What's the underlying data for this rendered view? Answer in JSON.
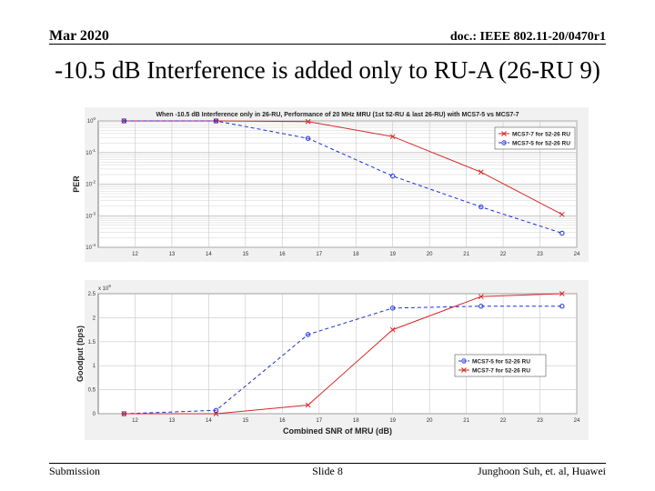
{
  "header": {
    "date": "Mar 2020",
    "doc": "doc.: IEEE 802.11-20/0470r1"
  },
  "title": "-10.5 dB Interference is added only to RU-A (26-RU 9)",
  "footer": {
    "left": "Submission",
    "center": "Slide 8",
    "right": "Junghoon Suh, et. al, Huawei"
  },
  "colors": {
    "red_series": "#d62728",
    "blue_series": "#1f2fd6"
  },
  "chart_data": [
    {
      "type": "line",
      "title": "When -10.5 dB Interference only in 26-RU, Performance of 20 MHz MRU (1st 52-RU & last 26-RU) with MCS7-5 vs MCS7-7",
      "xlabel": "",
      "ylabel": "PER",
      "yscale": "log",
      "xlim": [
        11,
        24
      ],
      "ylim_exp": [
        -4,
        0
      ],
      "x_ticks": [
        12,
        13,
        14,
        15,
        16,
        17,
        18,
        19,
        20,
        21,
        22,
        23,
        24
      ],
      "y_ticks": [
        "10^0",
        "10^-1",
        "10^-2",
        "10^-3",
        "10^-4"
      ],
      "legend": [
        "MCS7-7 for 52-26 RU",
        "MCS7-5 for 52-26 RU"
      ],
      "legend_position": "top-right",
      "series": [
        {
          "name": "MCS7-7 for 52-26 RU",
          "color": "red",
          "style": "solid",
          "marker": "x",
          "x": [
            11.7,
            14.2,
            16.7,
            19.0,
            21.4,
            23.6
          ],
          "y": [
            1.0,
            1.0,
            0.95,
            0.32,
            0.024,
            0.0011
          ]
        },
        {
          "name": "MCS7-5 for 52-26 RU",
          "color": "blue",
          "style": "dashed",
          "marker": "o",
          "x": [
            11.7,
            14.2,
            16.7,
            19.0,
            21.4,
            23.6
          ],
          "y": [
            1.0,
            1.0,
            0.28,
            0.018,
            0.0019,
            0.00028
          ]
        }
      ]
    },
    {
      "type": "line",
      "title": "",
      "xlabel": "Combined SNR of MRU (dB)",
      "ylabel": "Goodput (bps)",
      "y_multiplier": "x 10^8",
      "xlim": [
        11,
        24
      ],
      "ylim": [
        0,
        2.5
      ],
      "x_ticks": [
        12,
        13,
        14,
        15,
        16,
        17,
        18,
        19,
        20,
        21,
        22,
        23,
        24
      ],
      "y_ticks": [
        0,
        0.5,
        1,
        1.5,
        2,
        2.5
      ],
      "legend": [
        "MCS7-5 for 52-26 RU",
        "MCS7-7 for 52-26 RU"
      ],
      "legend_position": "bottom-right",
      "series": [
        {
          "name": "MCS7-5 for 52-26 RU",
          "color": "blue",
          "style": "dashed",
          "marker": "o",
          "x": [
            11.7,
            14.2,
            16.7,
            19.0,
            21.4,
            23.6
          ],
          "y": [
            0.0,
            0.07,
            1.65,
            2.2,
            2.24,
            2.24
          ]
        },
        {
          "name": "MCS7-7 for 52-26 RU",
          "color": "red",
          "style": "solid",
          "marker": "x",
          "x": [
            11.7,
            14.2,
            16.7,
            19.0,
            21.4,
            23.6
          ],
          "y": [
            0.0,
            0.0,
            0.18,
            1.75,
            2.44,
            2.5
          ]
        }
      ]
    }
  ]
}
